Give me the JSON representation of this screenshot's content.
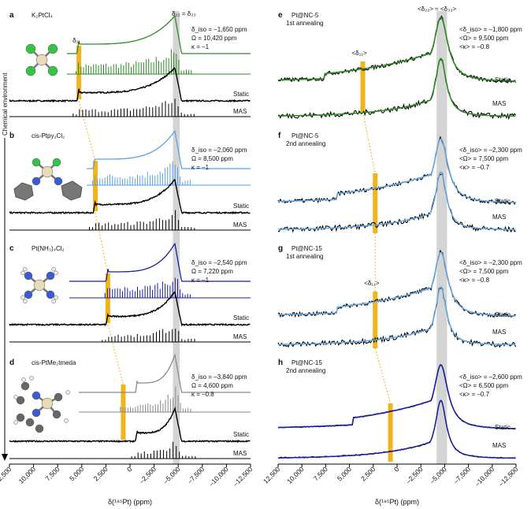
{
  "x_axis": {
    "ticks": [
      "12,500",
      "10,000",
      "7,500",
      "5,000",
      "2,500",
      "0",
      "–2,500",
      "–5,000",
      "–7,500",
      "–10,000",
      "–12,500"
    ],
    "label": "δ(¹⁹⁵Pt) (ppm)",
    "range": [
      12500,
      -12500
    ]
  },
  "arrow_label": "Chemical environment",
  "left_panels": [
    {
      "letter": "a",
      "compound": "K₂PtCl₄",
      "p1": "δ_iso = –1,650 ppm",
      "p2": "Ω = 10,420 ppm",
      "p3": "κ = –1",
      "color": "#2e8b24",
      "marker": "δ₁₁",
      "top_label": "δ₂₂ = δ₃₃"
    },
    {
      "letter": "b",
      "compound": "cis-Ptpy₂Cl₂",
      "p1": "δ_iso = –2,060 ppm",
      "p2": "Ω = 8,500 ppm",
      "p3": "κ = –1",
      "color": "#5aa0e8"
    },
    {
      "letter": "c",
      "compound": "Pt(NH₃)₄Cl₂",
      "p1": "δ_iso = –2,540 ppm",
      "p2": "Ω = 7,220 ppm",
      "p3": "κ = –1",
      "color": "#1a1ea0"
    },
    {
      "letter": "d",
      "compound": "cis-PtMe₂tmeda",
      "p1": "δ_iso = –3,840 ppm",
      "p2": "Ω = 4,600 ppm",
      "p3": "κ = –0.8",
      "color": "#8a8a8a"
    }
  ],
  "right_panels": [
    {
      "letter": "e",
      "title1": "Pt@NC-5",
      "title2": "1st annealing",
      "p1": "<δ_iso> = –1,800 ppm",
      "p2": "<Ω> = 9,500 ppm",
      "p3": "<κ> = –0.8",
      "color": "#2e8b24",
      "marker": "<δ₁₁>",
      "top_label": "<δ₂₂> ≈ <δ₃₃>"
    },
    {
      "letter": "f",
      "title1": "Pt@NC-5",
      "title2": "2nd annealing",
      "p1": "<δ_iso> = –2,300 ppm",
      "p2": "<Ω> = 7,500 ppm",
      "p3": "<κ> = –0.7",
      "color": "#6aa6e0"
    },
    {
      "letter": "g",
      "title1": "Pt@NC-15",
      "title2": "1st annealing",
      "p1": "<δ_iso> = –2,300 ppm",
      "p2": "<Ω> = 7,500 ppm",
      "p3": "<κ> = –0.8",
      "color": "#6aa6e0",
      "marker": "<δ₁₁>"
    },
    {
      "letter": "h",
      "title1": "Pt@NC-15",
      "title2": "2nd annealing",
      "p1": "<δ_iso> = –2,600 ppm",
      "p2": "<Ω> = 6,500 ppm",
      "p3": "<κ> = –0.7",
      "color": "#1a1ea0"
    }
  ],
  "trace_labels": {
    "static": "Static",
    "mas": "MAS"
  },
  "chart_data": [
    {
      "type": "line",
      "title": "",
      "xlabel": "δ(¹⁹⁵Pt) (ppm)",
      "xlim": [
        12500,
        -12500
      ],
      "series": [
        {
          "name": "K₂PtCl₄",
          "delta_iso": -1650,
          "omega": 10420,
          "kappa": -1,
          "delta11": 5300
        },
        {
          "name": "cis-Ptpy₂Cl₂",
          "delta_iso": -2060,
          "omega": 8500,
          "kappa": -1,
          "delta11": 3600
        },
        {
          "name": "Pt(NH₃)₄Cl₂",
          "delta_iso": -2540,
          "omega": 7220,
          "kappa": -1,
          "delta11": 2300
        },
        {
          "name": "cis-PtMe₂tmeda",
          "delta_iso": -3840,
          "omega": 4600,
          "kappa": -0.8,
          "delta11": 700
        }
      ]
    },
    {
      "type": "line",
      "title": "",
      "xlabel": "δ(¹⁹⁵Pt) (ppm)",
      "xlim": [
        12500,
        -12500
      ],
      "series": [
        {
          "name": "Pt@NC-5 1st annealing",
          "delta_iso": -1800,
          "omega": 9500,
          "kappa": -0.8,
          "delta11": 3600
        },
        {
          "name": "Pt@NC-5 2nd annealing",
          "delta_iso": -2300,
          "omega": 7500,
          "kappa": -0.7,
          "delta11": 2300
        },
        {
          "name": "Pt@NC-15 1st annealing",
          "delta_iso": -2300,
          "omega": 7500,
          "kappa": -0.8,
          "delta11": 2300
        },
        {
          "name": "Pt@NC-15 2nd annealing",
          "delta_iso": -2600,
          "omega": 6500,
          "kappa": -0.7,
          "delta11": 700
        }
      ]
    }
  ]
}
